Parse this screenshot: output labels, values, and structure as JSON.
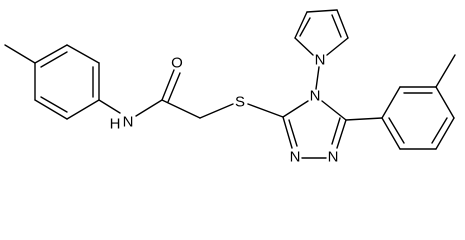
{
  "atoms": [
    {
      "label": "O"
    },
    {
      "label": "N"
    },
    {
      "label": "H"
    },
    {
      "label": "S"
    },
    {
      "label": "N"
    },
    {
      "label": "N"
    },
    {
      "label": "N"
    },
    {
      "label": "N"
    }
  ]
}
